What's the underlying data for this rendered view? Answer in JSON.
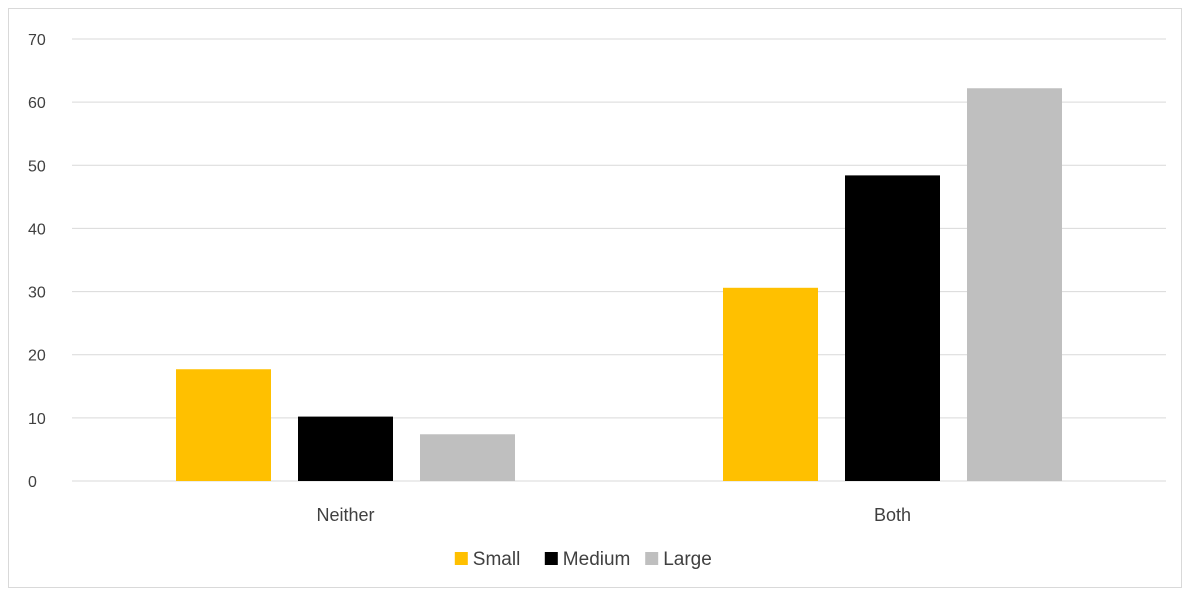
{
  "chart_data": {
    "type": "bar",
    "title": "",
    "xlabel": "",
    "ylabel": "",
    "categories": [
      "Neither",
      "Both"
    ],
    "series": [
      {
        "name": "Small",
        "values": [
          17.7,
          30.6
        ]
      },
      {
        "name": "Medium",
        "values": [
          10.2,
          48.4
        ]
      },
      {
        "name": "Large",
        "values": [
          7.4,
          62.2
        ]
      }
    ],
    "ylim": [
      0,
      70
    ],
    "yticks": [
      0,
      10,
      20,
      30,
      40,
      50,
      60,
      70
    ],
    "grid": true,
    "legend_position": "bottom",
    "colors": {
      "Small": "#ffc000",
      "Medium": "#000000",
      "Large": "#bfbfbf",
      "grid": "#d9d9d9",
      "text": "#404040"
    }
  }
}
